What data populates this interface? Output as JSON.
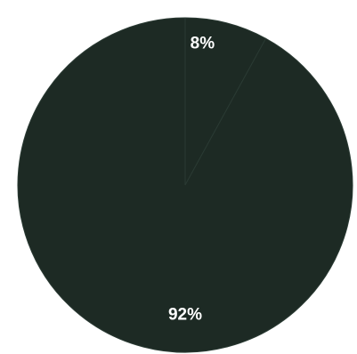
{
  "chart_data": {
    "type": "pie",
    "start_angle_deg": 0,
    "direction": "clockwise",
    "slices": [
      {
        "label": "8%",
        "value": 8,
        "color": "#1d2a24",
        "label_color": "#ffffff"
      },
      {
        "label": "92%",
        "value": 92,
        "color": "#1d2a24",
        "label_color": "#ffffff"
      }
    ]
  },
  "colors": {
    "background": "#ffffff",
    "divider": "#2a3a33"
  }
}
